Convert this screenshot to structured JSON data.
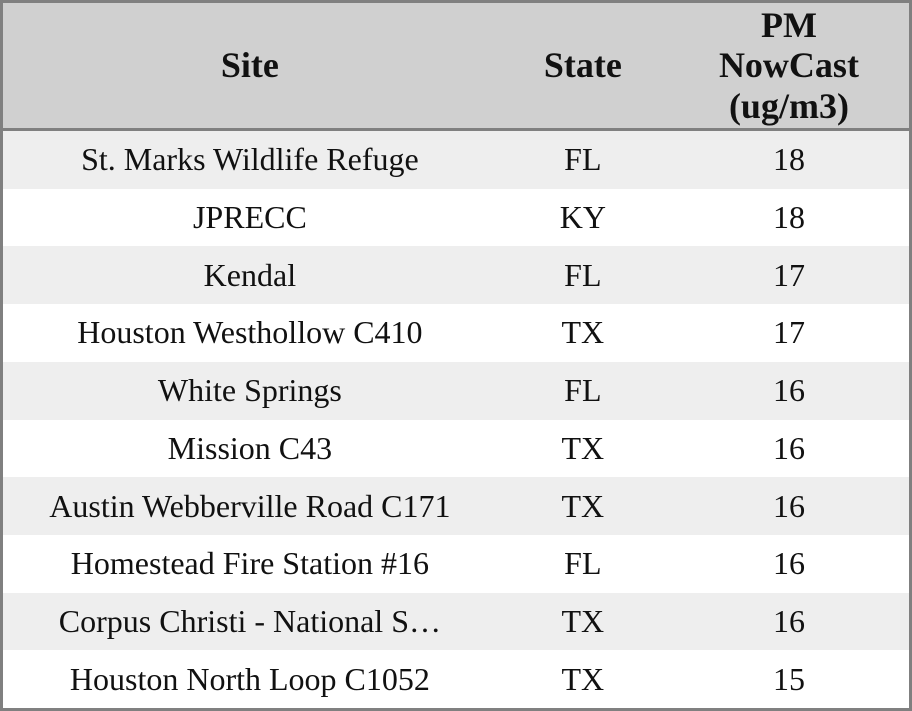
{
  "table": {
    "columns": [
      {
        "label": "Site"
      },
      {
        "label": "State"
      },
      {
        "label": "PM\nNowCast\n(ug/m3)"
      }
    ],
    "rows": [
      {
        "site": "St. Marks Wildlife Refuge",
        "state": "FL",
        "pm": "18"
      },
      {
        "site": "JPRECC",
        "state": "KY",
        "pm": "18"
      },
      {
        "site": "Kendal",
        "state": "FL",
        "pm": "17"
      },
      {
        "site": "Houston Westhollow C410",
        "state": "TX",
        "pm": "17"
      },
      {
        "site": "White Springs",
        "state": "FL",
        "pm": "16"
      },
      {
        "site": "Mission C43",
        "state": "TX",
        "pm": "16"
      },
      {
        "site": "Austin Webberville Road C171",
        "state": "TX",
        "pm": "16"
      },
      {
        "site": "Homestead Fire Station #16",
        "state": "FL",
        "pm": "16"
      },
      {
        "site": "Corpus Christi - National S…",
        "state": "TX",
        "pm": "16"
      },
      {
        "site": "Houston North Loop C1052",
        "state": "TX",
        "pm": "15"
      }
    ]
  },
  "colors": {
    "header_bg": "#d0d0d0",
    "row_alt_bg": "#eeeeee",
    "row_bg": "#ffffff",
    "border": "#808080",
    "text": "#111111"
  },
  "chart_data": {
    "type": "table",
    "title": "",
    "columns": [
      "Site",
      "State",
      "PM NowCast (ug/m3)"
    ],
    "rows": [
      [
        "St. Marks Wildlife Refuge",
        "FL",
        18
      ],
      [
        "JPRECC",
        "KY",
        18
      ],
      [
        "Kendal",
        "FL",
        17
      ],
      [
        "Houston Westhollow C410",
        "TX",
        17
      ],
      [
        "White Springs",
        "FL",
        16
      ],
      [
        "Mission C43",
        "TX",
        16
      ],
      [
        "Austin Webberville Road C171",
        "TX",
        16
      ],
      [
        "Homestead Fire Station #16",
        "FL",
        16
      ],
      [
        "Corpus Christi - National S…",
        "TX",
        16
      ],
      [
        "Houston North Loop C1052",
        "TX",
        15
      ]
    ]
  }
}
